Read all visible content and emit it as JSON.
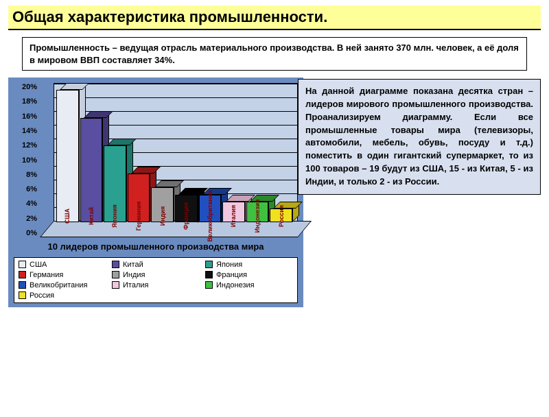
{
  "page": {
    "title": "Общая характеристика промышленности.",
    "intro": "Промышленность – ведущая отрасль материального производства. В ней занято 370 млн. человек, а её доля в мировом ВВП составляет 34%.",
    "description": "На  данной  диаграмме  показана десятка стран  –  лидеров мирового промышленного производства. Проанализируем диаграмму. Если все промышленные товары мира (телевизоры, автомобили, мебель,  обувь,  посуду  и  т.д.) поместить  в один гигантский супермаркет,  то из  100 товаров – 19 будут из США,  15 -  из Китая,  5 - из Индии, и только 2 - из России."
  },
  "chart": {
    "type": "bar-3d",
    "title": "10 лидеров промышленного производства мира",
    "ylim": [
      0,
      20
    ],
    "ytick_step": 2,
    "yticks": [
      "20%",
      "18%",
      "16%",
      "14%",
      "12%",
      "10%",
      "8%",
      "6%",
      "4%",
      "2%",
      "0%"
    ],
    "background_color": "#6a8bc0",
    "wall_color": "#c4d2e8",
    "floor_color": "#b8c8e0",
    "grid_color": "#000000",
    "bar_border": "#000000",
    "label_color": "#800000",
    "title_fontsize": 13,
    "tick_fontsize": 11,
    "series": [
      {
        "label": "США",
        "value": 19,
        "color": "#e8ecf4",
        "shade": "#c8cfdc"
      },
      {
        "label": "Китай",
        "value": 15,
        "color": "#5a4ea0",
        "shade": "#3e3670"
      },
      {
        "label": "Япония",
        "value": 11,
        "color": "#2aa090",
        "shade": "#1e7468"
      },
      {
        "label": "Германия",
        "value": 7,
        "color": "#d02020",
        "shade": "#901616"
      },
      {
        "label": "Индия",
        "value": 5,
        "color": "#a0a0a0",
        "shade": "#707070"
      },
      {
        "label": "Франция",
        "value": 4,
        "color": "#101010",
        "shade": "#000000"
      },
      {
        "label": "Великобритания",
        "value": 4,
        "color": "#2050c0",
        "shade": "#163888"
      },
      {
        "label": "Италия",
        "value": 3,
        "color": "#f0c8e0",
        "shade": "#c8a0b8"
      },
      {
        "label": "Индонезия",
        "value": 3,
        "color": "#40c040",
        "shade": "#2c882c"
      },
      {
        "label": "Россия",
        "value": 2,
        "color": "#f0e020",
        "shade": "#b8a818"
      }
    ]
  },
  "legend": {
    "items": [
      {
        "label": "США",
        "color": "#e8ecf4"
      },
      {
        "label": "Китай",
        "color": "#5a4ea0"
      },
      {
        "label": "Япония",
        "color": "#2aa090"
      },
      {
        "label": "Германия",
        "color": "#d02020"
      },
      {
        "label": "Индия",
        "color": "#a0a0a0"
      },
      {
        "label": "Франция",
        "color": "#101010"
      },
      {
        "label": "Великобритания",
        "color": "#2050c0"
      },
      {
        "label": "Италия",
        "color": "#f0c8e0"
      },
      {
        "label": "Индонезия",
        "color": "#40c040"
      },
      {
        "label": "Россия",
        "color": "#f0e020"
      }
    ]
  }
}
